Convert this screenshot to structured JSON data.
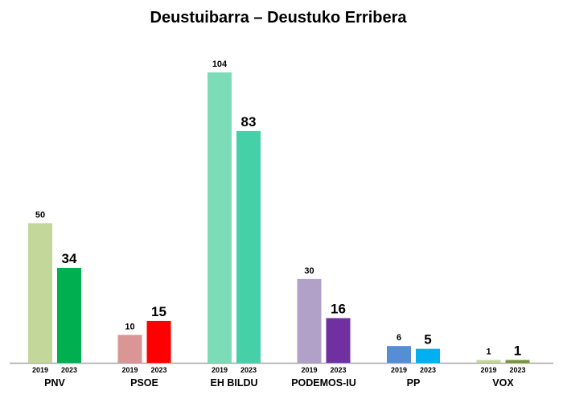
{
  "chart_data": {
    "type": "bar",
    "title": "Deustuibarra – Deustuko Erribera",
    "categories": [
      "PNV",
      "PSOE",
      "EH BILDU",
      "PODEMOS-IU",
      "PP",
      "VOX"
    ],
    "series": [
      {
        "name": "2019",
        "values": [
          50,
          10,
          104,
          30,
          6,
          1
        ]
      },
      {
        "name": "2023",
        "values": [
          34,
          15,
          83,
          16,
          5,
          1
        ]
      }
    ],
    "colors": {
      "2019": [
        "#c4d79b",
        "#da9694",
        "#7ddcb8",
        "#b1a0c7",
        "#558ed5",
        "#c4d79b"
      ],
      "2023": [
        "#00b050",
        "#ff0000",
        "#46d0a8",
        "#7030a0",
        "#00b0f0",
        "#77933c"
      ]
    },
    "axis_color": "#a6a6a6",
    "xlabel": "",
    "ylabel": "",
    "ylim": [
      0,
      110
    ],
    "grid": false,
    "legend": "none"
  }
}
